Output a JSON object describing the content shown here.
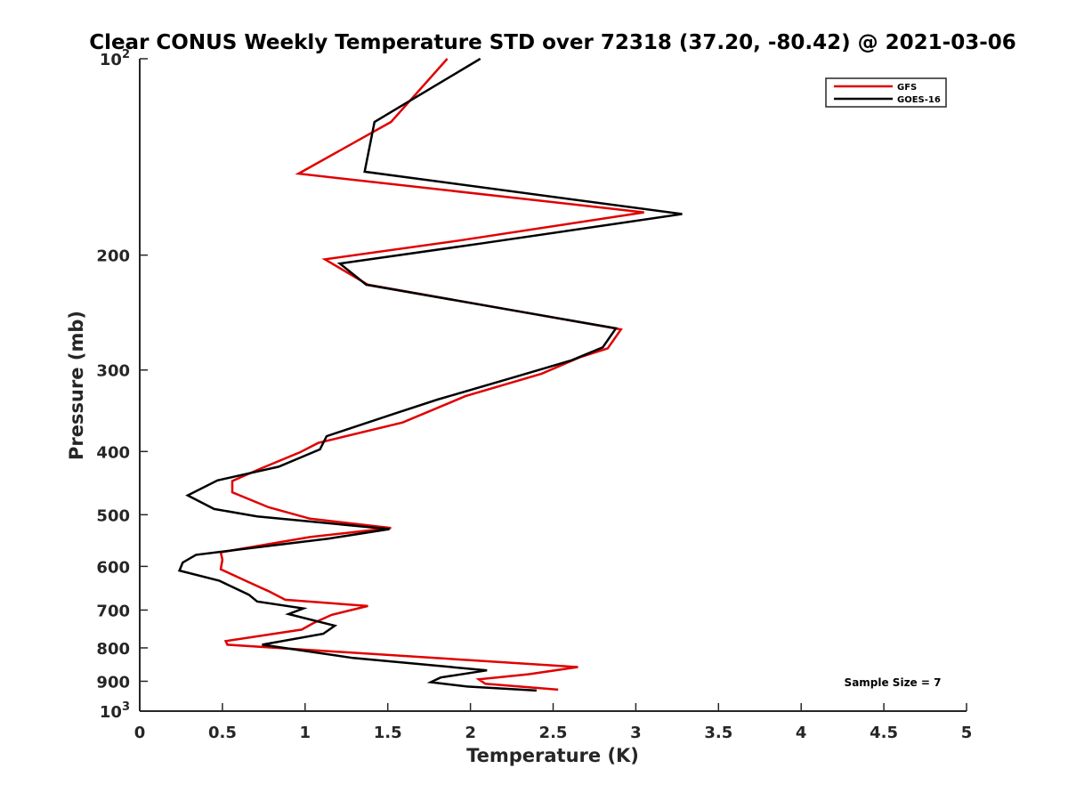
{
  "chart_data": {
    "type": "line",
    "title": "Clear CONUS Weekly Temperature STD over 72318 (37.20, -80.42) @ 2021-03-06",
    "xlabel": "Temperature (K)",
    "ylabel": "Pressure (mb)",
    "xlim": [
      0,
      5
    ],
    "ylim": [
      100,
      1000
    ],
    "y_scale": "log",
    "y_reversed": true,
    "x_ticks": [
      0,
      0.5,
      1,
      1.5,
      2,
      2.5,
      3,
      3.5,
      4,
      4.5,
      5
    ],
    "x_tick_labels": [
      "0",
      "0.5",
      "1",
      "1.5",
      "2",
      "2.5",
      "3",
      "3.5",
      "4",
      "4.5",
      "5"
    ],
    "y_ticks": [
      100,
      200,
      300,
      400,
      500,
      600,
      700,
      800,
      900,
      1000
    ],
    "y_tick_labels": [
      "10^2",
      "200",
      "300",
      "400",
      "500",
      "600",
      "700",
      "800",
      "900",
      "10^3"
    ],
    "grid": false,
    "legend_position": "top-right",
    "annotation": "Sample Size = 7",
    "series": [
      {
        "name": "GFS",
        "color": "#e00000",
        "points": [
          [
            1.86,
            100
          ],
          [
            1.52,
            125
          ],
          [
            0.96,
            150
          ],
          [
            3.05,
            172
          ],
          [
            1.93,
            190
          ],
          [
            1.12,
            203
          ],
          [
            1.38,
            222
          ],
          [
            2.91,
            260
          ],
          [
            2.83,
            278
          ],
          [
            2.66,
            287
          ],
          [
            2.43,
            304
          ],
          [
            1.97,
            329
          ],
          [
            1.59,
            361
          ],
          [
            1.08,
            388
          ],
          [
            0.97,
            401
          ],
          [
            0.73,
            425
          ],
          [
            0.56,
            444
          ],
          [
            0.56,
            462
          ],
          [
            0.78,
            487
          ],
          [
            1.03,
            507
          ],
          [
            1.52,
            524
          ],
          [
            1.03,
            541
          ],
          [
            0.49,
            571
          ],
          [
            0.5,
            586
          ],
          [
            0.49,
            606
          ],
          [
            0.65,
            633
          ],
          [
            0.78,
            655
          ],
          [
            0.88,
            675
          ],
          [
            1.38,
            690
          ],
          [
            1.16,
            712
          ],
          [
            1.05,
            733
          ],
          [
            0.98,
            750
          ],
          [
            0.52,
            781
          ],
          [
            0.53,
            791
          ],
          [
            2.65,
            856
          ],
          [
            2.35,
            878
          ],
          [
            2.05,
            894
          ],
          [
            2.09,
            908
          ],
          [
            2.53,
            927
          ]
        ]
      },
      {
        "name": "GOES-16",
        "color": "#000000",
        "points": [
          [
            2.06,
            100
          ],
          [
            1.42,
            125
          ],
          [
            1.36,
            149
          ],
          [
            3.28,
            173
          ],
          [
            2.06,
            192
          ],
          [
            1.21,
            206
          ],
          [
            1.37,
            222
          ],
          [
            2.88,
            259
          ],
          [
            2.8,
            277
          ],
          [
            2.61,
            290
          ],
          [
            2.26,
            308
          ],
          [
            1.8,
            333
          ],
          [
            1.54,
            350
          ],
          [
            1.13,
            379
          ],
          [
            1.09,
            397
          ],
          [
            0.84,
            422
          ],
          [
            0.47,
            443
          ],
          [
            0.29,
            467
          ],
          [
            0.45,
            490
          ],
          [
            0.71,
            503
          ],
          [
            1.51,
            526
          ],
          [
            1.14,
            544
          ],
          [
            0.34,
            576
          ],
          [
            0.26,
            592
          ],
          [
            0.24,
            609
          ],
          [
            0.48,
            631
          ],
          [
            0.66,
            663
          ],
          [
            0.71,
            679
          ],
          [
            0.99,
            696
          ],
          [
            0.9,
            710
          ],
          [
            1.18,
            740
          ],
          [
            1.11,
            761
          ],
          [
            0.74,
            791
          ],
          [
            1.29,
            829
          ],
          [
            2.1,
            866
          ],
          [
            1.82,
            888
          ],
          [
            1.76,
            903
          ],
          [
            1.98,
            917
          ],
          [
            2.4,
            930
          ]
        ]
      }
    ]
  }
}
